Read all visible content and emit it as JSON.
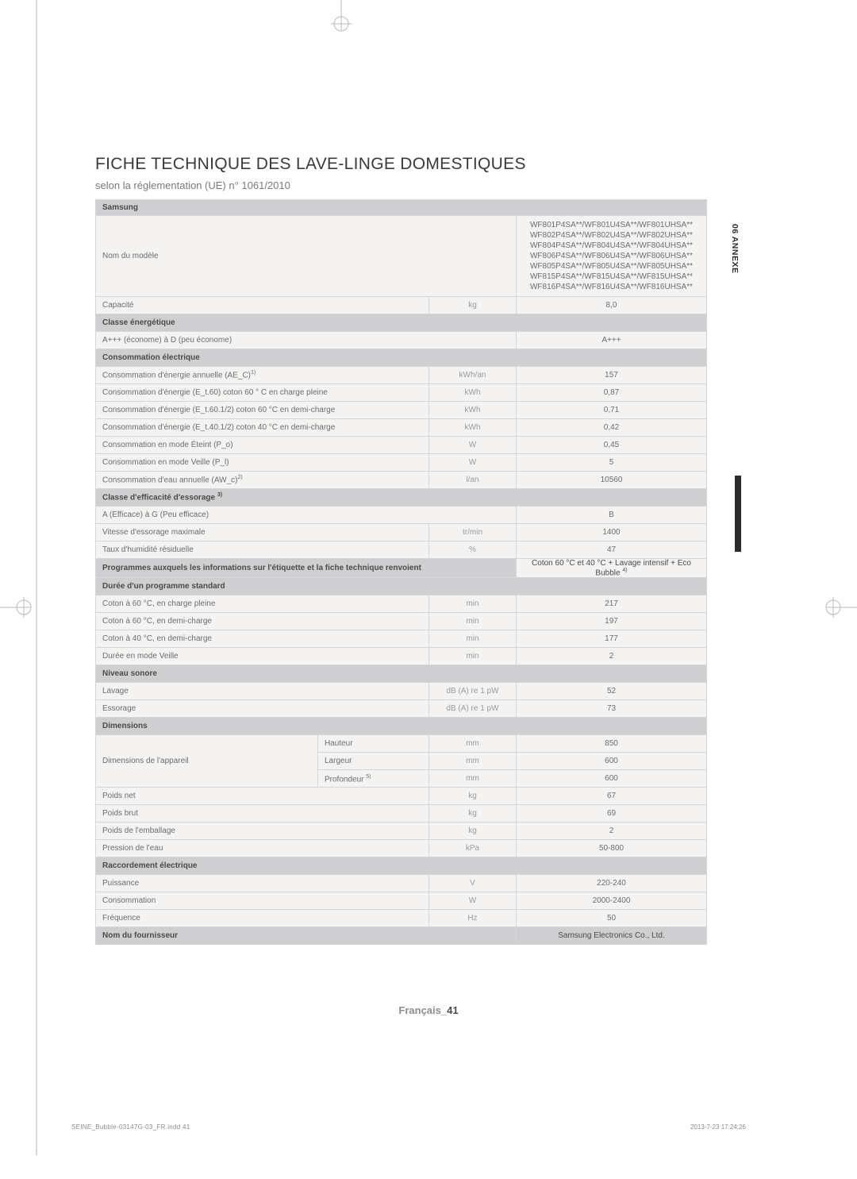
{
  "title": "FICHE TECHNIQUE DES LAVE-LINGE DOMESTIQUES",
  "subtitle": "selon la réglementation (UE) n° 1061/2010",
  "brand": "Samsung",
  "side": {
    "label": "06 ANNEXE"
  },
  "footer": {
    "lang": "Français_",
    "page": "41"
  },
  "print": {
    "file": "SEINE_Bubble-03147G-03_FR.indd   41",
    "ts": "2013-7-23   17:24:26"
  },
  "sections": [
    {
      "label": "Nom du modèle",
      "unit": "",
      "value_html": "WF801P4SA**/WF801U4SA**/WF801UHSA**\nWF802P4SA**/WF802U4SA**/WF802UHSA**\nWF804P4SA**/WF804U4SA**/WF804UHSA**\nWF806P4SA**/WF806U4SA**/WF806UHSA**\nWF805P4SA**/WF805U4SA**/WF805UHSA**\nWF815P4SA**/WF815U4SA**/WF815UHSA**\nWF816P4SA**/WF816U4SA**/WF816UHSA**"
    }
  ],
  "rows1": [
    {
      "label": "Capacité",
      "unit": "kg",
      "value": "8,0"
    }
  ],
  "sec_energy": "Classe énergétique",
  "rows_energy": [
    {
      "label": "A+++ (économe) à D (peu économe)",
      "unit": "",
      "value": "A+++"
    }
  ],
  "sec_power": "Consommation électrique",
  "rows_power": [
    {
      "label_html": "Consommation d'énergie annuelle (AE_C)<sup>1)</sup>",
      "unit": "kWh/an",
      "value": "157"
    },
    {
      "label": "Consommation d'énergie (E_t.60) coton 60 ° C en charge pleine",
      "unit": "kWh",
      "value": "0,87"
    },
    {
      "label": "Consommation d'énergie (E_t.60.1/2) coton 60 °C en demi-charge",
      "unit": "kWh",
      "value": "0,71"
    },
    {
      "label": "Consommation d'énergie (E_t.40.1/2) coton 40 °C en demi-charge",
      "unit": "kWh",
      "value": "0,42"
    },
    {
      "label": "Consommation en mode Éteint (P_o)",
      "unit": "W",
      "value": "0,45"
    },
    {
      "label": "Consommation en mode Veille (P_l)",
      "unit": "W",
      "value": "5"
    },
    {
      "label_html": "Consommation d'eau annuelle (AW_c)<sup>2)</sup>",
      "unit": "l/an",
      "value": "10560"
    }
  ],
  "sec_spin_html": "Classe d'efficacité d'essorage <sup>3)</sup>",
  "rows_spin": [
    {
      "label": "A (Efficace) à G (Peu efficace)",
      "unit": "",
      "value": "B"
    },
    {
      "label": "Vitesse d'essorage maximale",
      "unit": "tr/min",
      "value": "1400"
    },
    {
      "label": "Taux d'humidité résiduelle",
      "unit": "%",
      "value": "47"
    }
  ],
  "prog_row": {
    "label": "Programmes auxquels les informations sur l'étiquette et la fiche technique renvoient",
    "value_html": "Coton 60 °C et 40 °C + Lavage intensif + Eco Bubble <sup>4)</sup>"
  },
  "sec_dur": "Durée d'un programme standard",
  "rows_dur": [
    {
      "label": "Coton à 60 °C, en charge pleine",
      "unit": "min",
      "value": "217"
    },
    {
      "label": "Coton à 60 °C, en demi-charge",
      "unit": "min",
      "value": "197"
    },
    {
      "label": "Coton à 40 °C, en demi-charge",
      "unit": "min",
      "value": "177"
    },
    {
      "label": "Durée en mode Veille",
      "unit": "min",
      "value": "2"
    }
  ],
  "sec_noise": "Niveau sonore",
  "rows_noise": [
    {
      "label": "Lavage",
      "unit": "dB (A) re 1 pW",
      "value": "52"
    },
    {
      "label": "Essorage",
      "unit": "dB (A) re 1 pW",
      "value": "73"
    }
  ],
  "sec_dim": "Dimensions",
  "dim_group": {
    "group_label": "Dimensions de l'appareil",
    "rows": [
      {
        "sub": "Hauteur",
        "unit": "mm",
        "value": "850"
      },
      {
        "sub": "Largeur",
        "unit": "mm",
        "value": "600"
      },
      {
        "sub_html": "Profondeur <sup>5)</sup>",
        "unit": "mm",
        "value": "600"
      }
    ]
  },
  "rows_dim2": [
    {
      "label": "Poids net",
      "unit": "kg",
      "value": "67"
    },
    {
      "label": "Poids brut",
      "unit": "kg",
      "value": "69"
    },
    {
      "label": "Poids de l'emballage",
      "unit": "kg",
      "value": "2"
    },
    {
      "label": "Pression de l'eau",
      "unit": "kPa",
      "value": "50-800"
    }
  ],
  "sec_elec": "Raccordement électrique",
  "rows_elec": [
    {
      "label": "Puissance",
      "unit": "V",
      "value": "220-240"
    },
    {
      "label": "Consommation",
      "unit": "W",
      "value": "2000-2400"
    },
    {
      "label": "Fréquence",
      "unit": "Hz",
      "value": "50"
    }
  ],
  "supplier": {
    "label": "Nom du fournisseur",
    "value": "Samsung Electronics Co., Ltd."
  }
}
